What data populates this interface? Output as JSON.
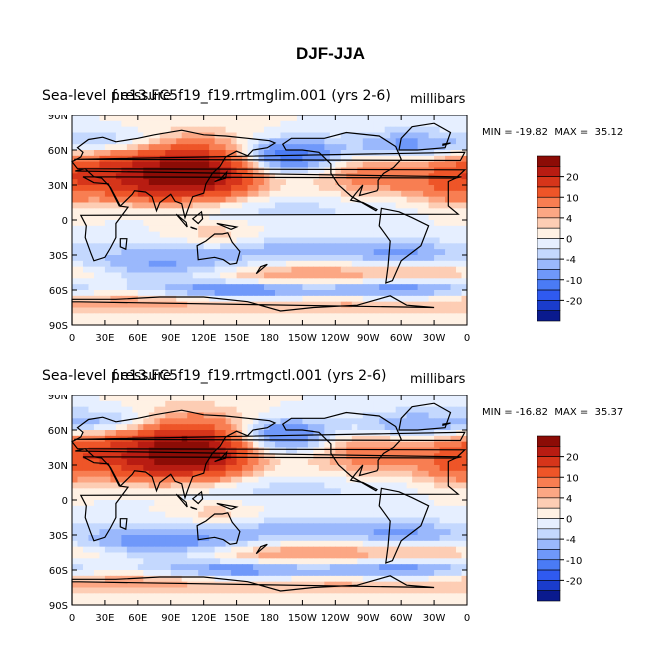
{
  "figure": {
    "title": "DJF-JJA"
  },
  "colors": {
    "land": "#ffffff",
    "coast": "#000000",
    "levels": [
      "#0a1a8e",
      "#1a3ccc",
      "#2f5af0",
      "#4a7bf5",
      "#6f98fa",
      "#9ab8fc",
      "#c4d8fe",
      "#e6efff",
      "#fff1e4",
      "#fdcdb4",
      "#fca784",
      "#f87e52",
      "#ee5528",
      "#d6351a",
      "#b81c12",
      "#8c0c06"
    ]
  },
  "chart_data": [
    {
      "type": "heatmap",
      "title_left": "Sea-level pressure",
      "title_center": "f.e13.FC5f19_f19.rrtmglim.001 (yrs 2-6)",
      "units": "millibars",
      "min_label": "MIN = -19.82",
      "max_label": "MAX =  35.12",
      "min": -19.82,
      "max": 35.12,
      "x_ticks": [
        "0",
        "30E",
        "60E",
        "90E",
        "120E",
        "150E",
        "180",
        "150W",
        "120W",
        "90W",
        "60W",
        "30W",
        "0"
      ],
      "y_ticks": [
        "90N",
        "60N",
        "30N",
        "0",
        "30S",
        "60S",
        "90S"
      ],
      "xlim": [
        0,
        360
      ],
      "ylim": [
        -90,
        90
      ],
      "colorbar_labels": [
        "20",
        "10",
        "4",
        "0",
        "-4",
        "-10",
        "-20"
      ],
      "anomaly_centers": [
        {
          "lon": 100,
          "lat": 45,
          "sx": 45,
          "sy": 17,
          "value": 25
        },
        {
          "lon": 20,
          "lat": 40,
          "sx": 32,
          "sy": 15,
          "value": 10
        },
        {
          "lon": 75,
          "lat": 28,
          "sx": 28,
          "sy": 10,
          "value": 8
        },
        {
          "lon": 130,
          "lat": 35,
          "sx": 25,
          "sy": 12,
          "value": 9
        },
        {
          "lon": 280,
          "lat": 40,
          "sx": 40,
          "sy": 14,
          "value": 9
        },
        {
          "lon": 345,
          "lat": 30,
          "sx": 22,
          "sy": 14,
          "value": 6
        },
        {
          "lon": 130,
          "lat": -15,
          "sx": 30,
          "sy": 9,
          "value": 4
        },
        {
          "lon": 200,
          "lat": -48,
          "sx": 60,
          "sy": 7,
          "value": 7
        },
        {
          "lon": 330,
          "lat": -45,
          "sx": 50,
          "sy": 6,
          "value": 5
        },
        {
          "lon": 60,
          "lat": -70,
          "sx": 70,
          "sy": 7,
          "value": 6
        },
        {
          "lon": 250,
          "lat": -72,
          "sx": 60,
          "sy": 6,
          "value": 5
        },
        {
          "lon": 195,
          "lat": 55,
          "sx": 35,
          "sy": 10,
          "value": -14
        },
        {
          "lon": 45,
          "lat": 65,
          "sx": 45,
          "sy": 9,
          "value": -8
        },
        {
          "lon": 300,
          "lat": 62,
          "sx": 35,
          "sy": 10,
          "value": -8
        },
        {
          "lon": 180,
          "lat": 10,
          "sx": 100,
          "sy": 9,
          "value": -3
        },
        {
          "lon": 180,
          "lat": -25,
          "sx": 120,
          "sy": 8,
          "value": -5
        },
        {
          "lon": 80,
          "lat": -40,
          "sx": 60,
          "sy": 8,
          "value": -6
        },
        {
          "lon": 150,
          "lat": -60,
          "sx": 60,
          "sy": 6,
          "value": -10
        },
        {
          "lon": 300,
          "lat": -60,
          "sx": 50,
          "sy": 7,
          "value": -8
        },
        {
          "lon": 300,
          "lat": -30,
          "sx": 30,
          "sy": 8,
          "value": -4
        }
      ]
    },
    {
      "type": "heatmap",
      "title_left": "Sea-level pressure",
      "title_center": "f.e13.FC5f19_f19.rrtmgctl.001 (yrs 2-6)",
      "units": "millibars",
      "min_label": "MIN = -16.82",
      "max_label": "MAX =  35.37",
      "min": -16.82,
      "max": 35.37,
      "x_ticks": [
        "0",
        "30E",
        "60E",
        "90E",
        "120E",
        "150E",
        "180",
        "150W",
        "120W",
        "90W",
        "60W",
        "30W",
        "0"
      ],
      "y_ticks": [
        "90N",
        "60N",
        "30N",
        "0",
        "30S",
        "60S",
        "90S"
      ],
      "xlim": [
        0,
        360
      ],
      "ylim": [
        -90,
        90
      ],
      "colorbar_labels": [
        "20",
        "10",
        "4",
        "0",
        "-4",
        "-10",
        "-20"
      ],
      "anomaly_centers": [
        {
          "lon": 100,
          "lat": 47,
          "sx": 42,
          "sy": 17,
          "value": 26
        },
        {
          "lon": 20,
          "lat": 40,
          "sx": 32,
          "sy": 15,
          "value": 10
        },
        {
          "lon": 75,
          "lat": 28,
          "sx": 28,
          "sy": 10,
          "value": 8
        },
        {
          "lon": 130,
          "lat": 35,
          "sx": 25,
          "sy": 12,
          "value": 9
        },
        {
          "lon": 275,
          "lat": 42,
          "sx": 40,
          "sy": 14,
          "value": 9
        },
        {
          "lon": 345,
          "lat": 30,
          "sx": 22,
          "sy": 14,
          "value": 6
        },
        {
          "lon": 130,
          "lat": -15,
          "sx": 30,
          "sy": 9,
          "value": 4
        },
        {
          "lon": 200,
          "lat": -47,
          "sx": 60,
          "sy": 7,
          "value": 7
        },
        {
          "lon": 330,
          "lat": -45,
          "sx": 50,
          "sy": 6,
          "value": 5
        },
        {
          "lon": 60,
          "lat": -70,
          "sx": 70,
          "sy": 7,
          "value": 6
        },
        {
          "lon": 250,
          "lat": -72,
          "sx": 60,
          "sy": 6,
          "value": 5
        },
        {
          "lon": 190,
          "lat": 55,
          "sx": 35,
          "sy": 10,
          "value": -12
        },
        {
          "lon": 40,
          "lat": 65,
          "sx": 45,
          "sy": 9,
          "value": -9
        },
        {
          "lon": 300,
          "lat": 62,
          "sx": 35,
          "sy": 10,
          "value": -7
        },
        {
          "lon": 180,
          "lat": 10,
          "sx": 100,
          "sy": 9,
          "value": -3
        },
        {
          "lon": 180,
          "lat": -25,
          "sx": 120,
          "sy": 8,
          "value": -5
        },
        {
          "lon": 80,
          "lat": -38,
          "sx": 60,
          "sy": 8,
          "value": -7
        },
        {
          "lon": 150,
          "lat": -60,
          "sx": 60,
          "sy": 6,
          "value": -9
        },
        {
          "lon": 300,
          "lat": -60,
          "sx": 50,
          "sy": 7,
          "value": -8
        },
        {
          "lon": 300,
          "lat": -30,
          "sx": 30,
          "sy": 8,
          "value": -4
        }
      ]
    }
  ]
}
